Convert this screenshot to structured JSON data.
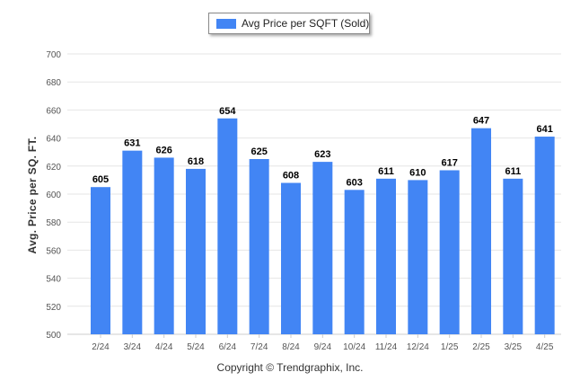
{
  "legend": {
    "label": "Avg Price per SQFT (Sold)"
  },
  "footer": {
    "copyright": "Copyright © Trendgraphix, Inc."
  },
  "colors": {
    "bar": "#4285f4",
    "grid": "#e6e6e6",
    "axis": "#cccccc",
    "label": "#000000",
    "tick": "#555555"
  },
  "chart_data": {
    "type": "bar",
    "categories": [
      "2/24",
      "3/24",
      "4/24",
      "5/24",
      "6/24",
      "7/24",
      "8/24",
      "9/24",
      "10/24",
      "11/24",
      "12/24",
      "1/25",
      "2/25",
      "3/25",
      "4/25"
    ],
    "series": [
      {
        "name": "Avg Price per SQFT (Sold)",
        "values": [
          605,
          631,
          626,
          618,
          654,
          625,
          608,
          623,
          603,
          611,
          610,
          617,
          647,
          611,
          641
        ]
      }
    ],
    "title": "",
    "xlabel": "",
    "ylabel": "Avg. Price per SQ. FT.",
    "ylim": [
      500,
      700
    ],
    "yticks": [
      500,
      520,
      540,
      560,
      580,
      600,
      620,
      640,
      660,
      680,
      700
    ],
    "grid": true,
    "legend_position": "top-center",
    "data_labels": true
  }
}
